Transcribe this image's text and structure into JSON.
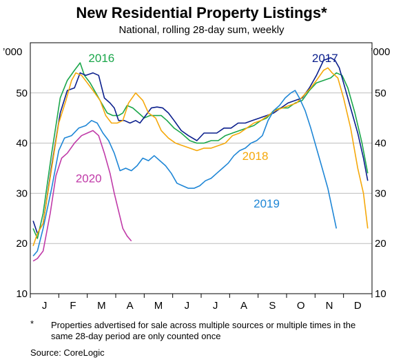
{
  "header": {
    "title": "New Residential Property Listings*",
    "subtitle": "National, rolling 28-day sum, weekly"
  },
  "footnote": {
    "marker": "*",
    "text": "Properties advertised for sale across multiple sources or multiple times in the same 28-day period are only counted once"
  },
  "source": "Source:   CoreLogic",
  "chart_data": {
    "type": "line",
    "title": "New Residential Property Listings*",
    "subtitle": "National, rolling 28-day sum, weekly",
    "y_unit_left": "’000",
    "y_unit_right": "’000",
    "ylim": [
      10,
      60
    ],
    "yticks": [
      10,
      20,
      30,
      40,
      50
    ],
    "x_domain": [
      0,
      12
    ],
    "x_categories": [
      "J",
      "F",
      "M",
      "A",
      "M",
      "J",
      "J",
      "A",
      "S",
      "O",
      "N",
      "D"
    ],
    "grid": "horizontal",
    "legend": "inline labels",
    "series": [
      {
        "name": "2016",
        "color": "#1aa64a",
        "label_pos": [
          2.5,
          57
        ],
        "points": [
          [
            0.1,
            23.0
          ],
          [
            0.25,
            21.0
          ],
          [
            0.45,
            26.0
          ],
          [
            0.75,
            38.0
          ],
          [
            1.05,
            49.0
          ],
          [
            1.3,
            52.5
          ],
          [
            1.55,
            54.5
          ],
          [
            1.75,
            56.0
          ],
          [
            1.9,
            53.5
          ],
          [
            2.1,
            52.0
          ],
          [
            2.3,
            50.0
          ],
          [
            2.5,
            48.0
          ],
          [
            2.7,
            46.0
          ],
          [
            2.9,
            45.5
          ],
          [
            3.1,
            45.5
          ],
          [
            3.25,
            46.0
          ],
          [
            3.4,
            47.5
          ],
          [
            3.6,
            47.0
          ],
          [
            3.8,
            46.0
          ],
          [
            4.0,
            45.0
          ],
          [
            4.2,
            45.5
          ],
          [
            4.4,
            45.5
          ],
          [
            4.6,
            45.5
          ],
          [
            4.8,
            44.5
          ],
          [
            5.05,
            43.0
          ],
          [
            5.3,
            42.0
          ],
          [
            5.6,
            40.5
          ],
          [
            5.85,
            40.0
          ],
          [
            6.1,
            40.0
          ],
          [
            6.35,
            40.5
          ],
          [
            6.6,
            40.5
          ],
          [
            6.85,
            41.5
          ],
          [
            7.1,
            42.0
          ],
          [
            7.35,
            42.5
          ],
          [
            7.6,
            43.0
          ],
          [
            7.85,
            43.5
          ],
          [
            8.1,
            44.5
          ],
          [
            8.3,
            45.0
          ],
          [
            8.55,
            46.5
          ],
          [
            8.8,
            47.0
          ],
          [
            9.05,
            47.0
          ],
          [
            9.3,
            48.0
          ],
          [
            9.55,
            48.5
          ],
          [
            9.8,
            50.5
          ],
          [
            10.05,
            52.0
          ],
          [
            10.3,
            52.5
          ],
          [
            10.55,
            53.0
          ],
          [
            10.75,
            54.0
          ],
          [
            10.95,
            53.5
          ],
          [
            11.15,
            51.0
          ],
          [
            11.4,
            46.0
          ],
          [
            11.65,
            40.0
          ],
          [
            11.85,
            34.0
          ]
        ]
      },
      {
        "name": "2017",
        "color": "#0a1e8c",
        "label_pos": [
          10.35,
          57
        ],
        "points": [
          [
            0.1,
            24.5
          ],
          [
            0.25,
            22.0
          ],
          [
            0.45,
            24.0
          ],
          [
            0.75,
            35.5
          ],
          [
            1.05,
            46.0
          ],
          [
            1.3,
            50.5
          ],
          [
            1.55,
            51.0
          ],
          [
            1.75,
            54.0
          ],
          [
            1.95,
            53.5
          ],
          [
            2.2,
            54.0
          ],
          [
            2.4,
            53.5
          ],
          [
            2.6,
            49.0
          ],
          [
            2.8,
            48.0
          ],
          [
            2.95,
            47.0
          ],
          [
            3.1,
            44.5
          ],
          [
            3.3,
            44.5
          ],
          [
            3.5,
            44.0
          ],
          [
            3.7,
            44.5
          ],
          [
            3.85,
            44.0
          ],
          [
            4.05,
            45.5
          ],
          [
            4.25,
            47.0
          ],
          [
            4.45,
            47.2
          ],
          [
            4.65,
            47.0
          ],
          [
            4.85,
            46.0
          ],
          [
            5.05,
            44.5
          ],
          [
            5.3,
            42.5
          ],
          [
            5.55,
            41.5
          ],
          [
            5.85,
            40.5
          ],
          [
            6.1,
            42.0
          ],
          [
            6.35,
            42.0
          ],
          [
            6.55,
            42.0
          ],
          [
            6.8,
            43.0
          ],
          [
            7.05,
            43.0
          ],
          [
            7.3,
            44.0
          ],
          [
            7.55,
            44.0
          ],
          [
            7.8,
            44.5
          ],
          [
            8.05,
            45.0
          ],
          [
            8.3,
            45.5
          ],
          [
            8.55,
            46.0
          ],
          [
            8.8,
            47.0
          ],
          [
            9.05,
            48.0
          ],
          [
            9.3,
            48.5
          ],
          [
            9.55,
            49.0
          ],
          [
            9.8,
            51.0
          ],
          [
            10.05,
            53.5
          ],
          [
            10.3,
            56.5
          ],
          [
            10.55,
            57.0
          ],
          [
            10.7,
            56.5
          ],
          [
            10.85,
            55.0
          ],
          [
            11.0,
            52.0
          ],
          [
            11.25,
            47.0
          ],
          [
            11.5,
            42.0
          ],
          [
            11.7,
            37.0
          ],
          [
            11.85,
            32.5
          ]
        ]
      },
      {
        "name": "2018",
        "color": "#f5a80a",
        "label_pos": [
          7.9,
          37.5
        ],
        "points": [
          [
            0.1,
            19.5
          ],
          [
            0.25,
            22.0
          ],
          [
            0.45,
            24.0
          ],
          [
            0.75,
            35.0
          ],
          [
            1.0,
            44.0
          ],
          [
            1.25,
            48.5
          ],
          [
            1.45,
            52.5
          ],
          [
            1.6,
            54.0
          ],
          [
            1.8,
            53.5
          ],
          [
            2.0,
            52.0
          ],
          [
            2.2,
            50.5
          ],
          [
            2.45,
            48.5
          ],
          [
            2.65,
            45.5
          ],
          [
            2.85,
            44.0
          ],
          [
            3.05,
            44.0
          ],
          [
            3.25,
            44.5
          ],
          [
            3.45,
            48.0
          ],
          [
            3.7,
            50.0
          ],
          [
            3.95,
            48.5
          ],
          [
            4.15,
            46.0
          ],
          [
            4.4,
            45.0
          ],
          [
            4.6,
            42.5
          ],
          [
            4.85,
            41.0
          ],
          [
            5.1,
            40.0
          ],
          [
            5.35,
            39.5
          ],
          [
            5.6,
            39.0
          ],
          [
            5.85,
            38.5
          ],
          [
            6.1,
            39.0
          ],
          [
            6.35,
            39.0
          ],
          [
            6.6,
            39.5
          ],
          [
            6.85,
            40.0
          ],
          [
            7.1,
            41.5
          ],
          [
            7.35,
            42.0
          ],
          [
            7.6,
            43.0
          ],
          [
            7.85,
            44.0
          ],
          [
            8.1,
            44.5
          ],
          [
            8.35,
            45.5
          ],
          [
            8.6,
            46.5
          ],
          [
            8.85,
            47.0
          ],
          [
            9.1,
            47.5
          ],
          [
            9.35,
            48.0
          ],
          [
            9.6,
            49.5
          ],
          [
            9.85,
            51.0
          ],
          [
            10.05,
            52.5
          ],
          [
            10.3,
            54.5
          ],
          [
            10.45,
            55.0
          ],
          [
            10.6,
            54.0
          ],
          [
            10.8,
            53.0
          ],
          [
            11.0,
            49.0
          ],
          [
            11.25,
            43.0
          ],
          [
            11.5,
            35.0
          ],
          [
            11.7,
            30.0
          ],
          [
            11.85,
            23.0
          ]
        ]
      },
      {
        "name": "2019",
        "color": "#1e86d6",
        "label_pos": [
          8.3,
          28.0
        ],
        "points": [
          [
            0.1,
            17.5
          ],
          [
            0.25,
            18.5
          ],
          [
            0.45,
            23.0
          ],
          [
            0.75,
            31.0
          ],
          [
            1.0,
            38.5
          ],
          [
            1.2,
            41.0
          ],
          [
            1.45,
            41.5
          ],
          [
            1.7,
            43.0
          ],
          [
            1.95,
            43.5
          ],
          [
            2.15,
            44.5
          ],
          [
            2.35,
            44.0
          ],
          [
            2.55,
            42.0
          ],
          [
            2.75,
            40.5
          ],
          [
            2.95,
            38.0
          ],
          [
            3.15,
            34.5
          ],
          [
            3.35,
            35.0
          ],
          [
            3.55,
            34.5
          ],
          [
            3.75,
            35.5
          ],
          [
            3.95,
            37.0
          ],
          [
            4.15,
            36.5
          ],
          [
            4.35,
            37.5
          ],
          [
            4.55,
            36.5
          ],
          [
            4.75,
            35.5
          ],
          [
            4.95,
            34.0
          ],
          [
            5.15,
            32.0
          ],
          [
            5.35,
            31.5
          ],
          [
            5.55,
            31.0
          ],
          [
            5.75,
            31.0
          ],
          [
            5.95,
            31.5
          ],
          [
            6.15,
            32.5
          ],
          [
            6.35,
            33.0
          ],
          [
            6.55,
            34.0
          ],
          [
            6.75,
            35.0
          ],
          [
            6.95,
            36.0
          ],
          [
            7.15,
            37.5
          ],
          [
            7.35,
            38.5
          ],
          [
            7.55,
            39.0
          ],
          [
            7.75,
            40.0
          ],
          [
            7.95,
            40.5
          ],
          [
            8.15,
            41.5
          ],
          [
            8.35,
            44.5
          ],
          [
            8.55,
            46.5
          ],
          [
            8.75,
            47.5
          ],
          [
            8.95,
            49.0
          ],
          [
            9.15,
            50.0
          ],
          [
            9.3,
            50.5
          ],
          [
            9.45,
            49.0
          ],
          [
            9.65,
            46.5
          ],
          [
            9.85,
            43.0
          ],
          [
            10.05,
            39.0
          ],
          [
            10.25,
            35.0
          ],
          [
            10.45,
            31.0
          ],
          [
            10.6,
            27.0
          ],
          [
            10.75,
            23.0
          ]
        ]
      },
      {
        "name": "2020",
        "color": "#c03aa8",
        "label_pos": [
          2.05,
          33.0
        ],
        "points": [
          [
            0.1,
            16.5
          ],
          [
            0.25,
            17.0
          ],
          [
            0.45,
            18.5
          ],
          [
            0.7,
            26.0
          ],
          [
            0.9,
            33.5
          ],
          [
            1.1,
            37.0
          ],
          [
            1.3,
            38.0
          ],
          [
            1.55,
            40.0
          ],
          [
            1.8,
            41.5
          ],
          [
            2.0,
            42.0
          ],
          [
            2.2,
            42.5
          ],
          [
            2.4,
            41.5
          ],
          [
            2.6,
            38.0
          ],
          [
            2.8,
            34.0
          ],
          [
            2.95,
            30.0
          ],
          [
            3.1,
            26.5
          ],
          [
            3.25,
            23.0
          ],
          [
            3.4,
            21.5
          ],
          [
            3.55,
            20.5
          ]
        ]
      }
    ]
  }
}
